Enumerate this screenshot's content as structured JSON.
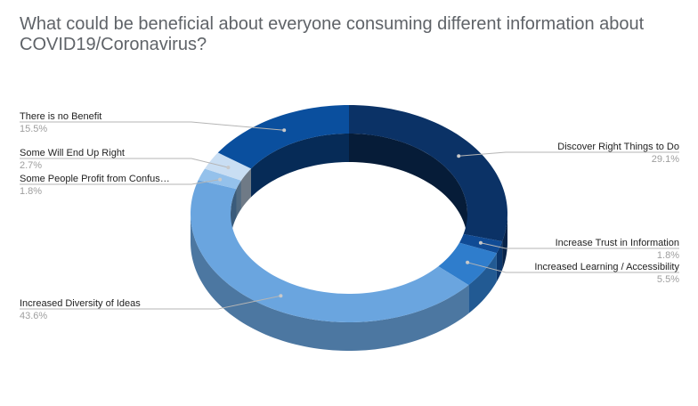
{
  "chart_data": {
    "type": "pie",
    "style": "3d-donut",
    "title": "What could be beneficial about everyone consuming different information about COVID19/Coronavirus?",
    "slices": [
      {
        "label": "Discover Right Things to Do",
        "value": 29.1,
        "display": "29.1%",
        "color": "#0b3266"
      },
      {
        "label": "Increase Trust in Information",
        "value": 1.8,
        "display": "1.8%",
        "color": "#104b95"
      },
      {
        "label": "Increased Learning / Accessibility",
        "value": 5.5,
        "display": "5.5%",
        "color": "#2f7dcc"
      },
      {
        "label": "Increased Diversity of Ideas",
        "value": 43.6,
        "display": "43.6%",
        "color": "#6aa5df"
      },
      {
        "label": "Some People Profit from Confus…",
        "value": 1.8,
        "display": "1.8%",
        "color": "#94c1eb"
      },
      {
        "label": "Some Will End Up Right",
        "value": 2.7,
        "display": "2.7%",
        "color": "#c9def3"
      },
      {
        "label": "There is no Benefit",
        "value": 15.5,
        "display": "15.5%",
        "color": "#0a4f9e"
      }
    ],
    "legend": "none"
  }
}
